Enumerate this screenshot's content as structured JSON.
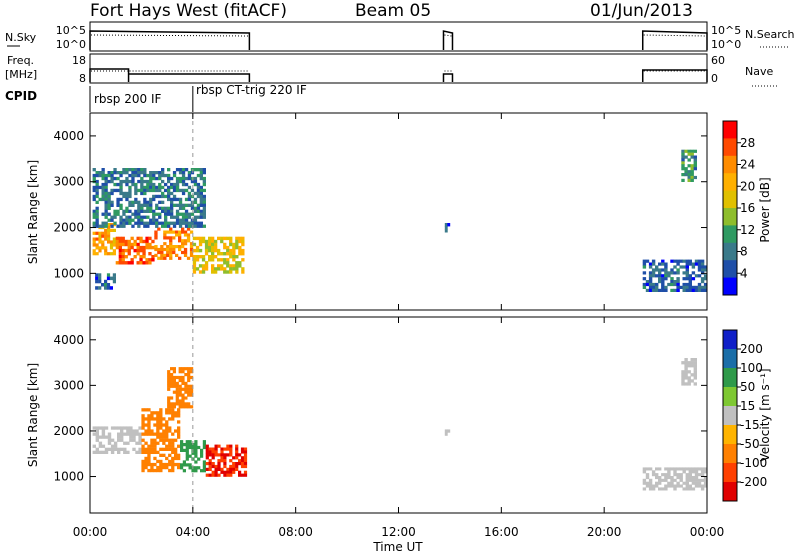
{
  "header": {
    "station": "Fort Hays West (fitACF)",
    "beam": "Beam 05",
    "date": "01/Jun/2013"
  },
  "param_panels": {
    "nsky_label": "N.Sky",
    "nsky_ticks": [
      "10^5",
      "10^0"
    ],
    "nsearch_label": "N.Search",
    "nsearch_ticks": [
      "10^5",
      "10^0"
    ],
    "freq_label": "Freq.",
    "freq_unit": "[MHz]",
    "freq_ticks": [
      "18",
      "8"
    ],
    "nave_label": "Nave",
    "nave_ticks": [
      "60",
      "0"
    ],
    "cpid_label": "CPID",
    "cpid_segments": [
      "rbsp 200 IF",
      "rbsp CT-trig 220 IF"
    ]
  },
  "axes": {
    "y_label": "Slant Range [km]",
    "y_ticks": [
      "4000",
      "3000",
      "2000",
      "1000"
    ],
    "x_label": "Time UT",
    "x_ticks": [
      "00:00",
      "04:00",
      "08:00",
      "12:00",
      "16:00",
      "20:00",
      "00:00"
    ]
  },
  "colorbars": {
    "power": {
      "label": "Power [dB]",
      "ticks": [
        "28",
        "24",
        "20",
        "16",
        "12",
        "8",
        "4"
      ],
      "colors": [
        "#ff0000",
        "#ff4a00",
        "#ff8c00",
        "#ffb000",
        "#e0c000",
        "#8ebd2c",
        "#2f9a62",
        "#3a7a8a",
        "#1f4fa8",
        "#0000ff"
      ]
    },
    "velocity": {
      "label": "Velocity [m s⁻¹]",
      "ticks": [
        "200",
        "100",
        "50",
        "15",
        "-15",
        "-50",
        "-100",
        "-200"
      ],
      "colors": [
        "#1020c8",
        "#1b6ea8",
        "#2f9a4a",
        "#7ec832",
        "#c0c0c0",
        "#ffb400",
        "#ff8000",
        "#ff4000",
        "#e00000"
      ]
    }
  },
  "chart_data": {
    "type": "heatmap",
    "title": "Fort Hays West (fitACF)",
    "xlabel": "Time UT",
    "ylabel": "Slant Range [km]",
    "x_range_hours": [
      0,
      24
    ],
    "y_range_km": [
      200,
      4500
    ],
    "power_db_range": [
      0,
      32
    ],
    "velocity_range": [
      -250,
      250
    ],
    "power_regions": [
      {
        "t0": 0.1,
        "t1": 1.0,
        "r0": 1400,
        "r1": 2100,
        "value": 22
      },
      {
        "t0": 1.0,
        "t1": 2.5,
        "r0": 1200,
        "r1": 1800,
        "value": 26
      },
      {
        "t0": 2.5,
        "t1": 4.0,
        "r0": 1300,
        "r1": 2000,
        "value": 24
      },
      {
        "t0": 4.0,
        "t1": 6.0,
        "r0": 1000,
        "r1": 1800,
        "value": 18
      },
      {
        "t0": 0.1,
        "t1": 4.5,
        "r0": 2000,
        "r1": 3300,
        "value": 8
      },
      {
        "t0": 0.2,
        "t1": 1.0,
        "r0": 650,
        "r1": 1000,
        "value": 6
      },
      {
        "t0": 13.8,
        "t1": 14.0,
        "r0": 1900,
        "r1": 2100,
        "value": 6
      },
      {
        "t0": 21.5,
        "t1": 24.0,
        "r0": 600,
        "r1": 1300,
        "value": 6
      },
      {
        "t0": 23.0,
        "t1": 23.6,
        "r0": 3000,
        "r1": 3700,
        "value": 10
      }
    ],
    "velocity_regions": [
      {
        "t0": 0.1,
        "t1": 2.0,
        "r0": 1500,
        "r1": 2100,
        "value": 0
      },
      {
        "t0": 2.0,
        "t1": 3.5,
        "r0": 1100,
        "r1": 2500,
        "value": -60
      },
      {
        "t0": 3.0,
        "t1": 4.0,
        "r0": 2500,
        "r1": 3400,
        "value": -60
      },
      {
        "t0": 3.5,
        "t1": 4.5,
        "r0": 1100,
        "r1": 1800,
        "value": 60
      },
      {
        "t0": 4.5,
        "t1": 6.1,
        "r0": 1000,
        "r1": 1700,
        "value": -200
      },
      {
        "t0": 13.8,
        "t1": 14.0,
        "r0": 1900,
        "r1": 2100,
        "value": 0
      },
      {
        "t0": 21.5,
        "t1": 24.0,
        "r0": 700,
        "r1": 1200,
        "value": 0
      },
      {
        "t0": 23.0,
        "t1": 23.6,
        "r0": 3000,
        "r1": 3600,
        "value": 0
      }
    ],
    "operating_segments_hours": [
      [
        0.0,
        6.2
      ],
      [
        13.75,
        14.1
      ],
      [
        21.5,
        24.0
      ]
    ],
    "frequency_mhz": [
      {
        "t0": 0.0,
        "t1": 1.5,
        "value": 14.5
      },
      {
        "t0": 1.5,
        "t1": 6.2,
        "value": 12
      },
      {
        "t0": 13.75,
        "t1": 14.1,
        "value": 12
      },
      {
        "t0": 21.5,
        "t1": 24.0,
        "value": 14
      }
    ],
    "cpid_boundary_hour": 4.0
  }
}
